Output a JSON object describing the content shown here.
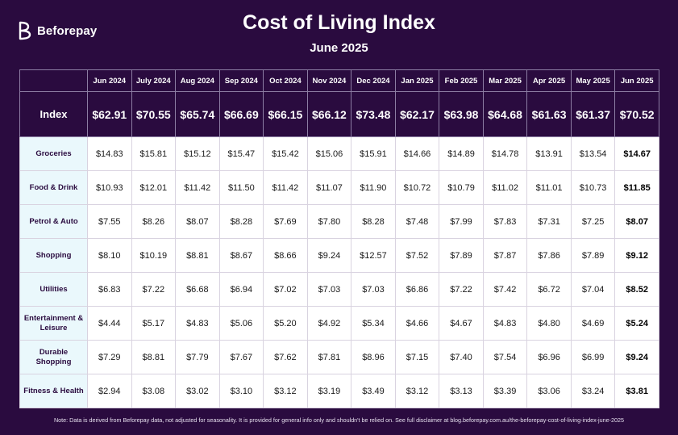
{
  "brand": {
    "name": "Beforepay",
    "logo_icon": "beforepay-b-logo-icon"
  },
  "title": "Cost of Living Index",
  "subtitle": "June 2025",
  "chart_data": {
    "type": "table",
    "columns": [
      "Jun 2024",
      "July 2024",
      "Aug 2024",
      "Sep 2024",
      "Oct 2024",
      "Nov 2024",
      "Dec 2024",
      "Jan 2025",
      "Feb 2025",
      "Mar 2025",
      "Apr 2025",
      "May 2025",
      "Jun 2025"
    ],
    "index_row": {
      "label": "Index",
      "values": [
        "$62.91",
        "$70.55",
        "$65.74",
        "$66.69",
        "$66.15",
        "$66.12",
        "$73.48",
        "$62.17",
        "$63.98",
        "$64.68",
        "$61.63",
        "$61.37",
        "$70.52"
      ]
    },
    "rows": [
      {
        "label": "Groceries",
        "values": [
          "$14.83",
          "$15.81",
          "$15.12",
          "$15.47",
          "$15.42",
          "$15.06",
          "$15.91",
          "$14.66",
          "$14.89",
          "$14.78",
          "$13.91",
          "$13.54",
          "$14.67"
        ]
      },
      {
        "label": "Food & Drink",
        "values": [
          "$10.93",
          "$12.01",
          "$11.42",
          "$11.50",
          "$11.42",
          "$11.07",
          "$11.90",
          "$10.72",
          "$10.79",
          "$11.02",
          "$11.01",
          "$10.73",
          "$11.85"
        ]
      },
      {
        "label": "Petrol & Auto",
        "values": [
          "$7.55",
          "$8.26",
          "$8.07",
          "$8.28",
          "$7.69",
          "$7.80",
          "$8.28",
          "$7.48",
          "$7.99",
          "$7.83",
          "$7.31",
          "$7.25",
          "$8.07"
        ]
      },
      {
        "label": "Shopping",
        "values": [
          "$8.10",
          "$10.19",
          "$8.81",
          "$8.67",
          "$8.66",
          "$9.24",
          "$12.57",
          "$7.52",
          "$7.89",
          "$7.87",
          "$7.86",
          "$7.89",
          "$9.12"
        ]
      },
      {
        "label": "Utilities",
        "values": [
          "$6.83",
          "$7.22",
          "$6.68",
          "$6.94",
          "$7.02",
          "$7.03",
          "$7.03",
          "$6.86",
          "$7.22",
          "$7.42",
          "$6.72",
          "$7.04",
          "$8.52"
        ]
      },
      {
        "label": "Entertainment & Leisure",
        "values": [
          "$4.44",
          "$5.17",
          "$4.83",
          "$5.06",
          "$5.20",
          "$4.92",
          "$5.34",
          "$4.66",
          "$4.67",
          "$4.83",
          "$4.80",
          "$4.69",
          "$5.24"
        ]
      },
      {
        "label": "Durable Shopping",
        "values": [
          "$7.29",
          "$8.81",
          "$7.79",
          "$7.67",
          "$7.62",
          "$7.81",
          "$8.96",
          "$7.15",
          "$7.40",
          "$7.54",
          "$6.96",
          "$6.99",
          "$9.24"
        ]
      },
      {
        "label": "Fitness & Health",
        "values": [
          "$2.94",
          "$3.08",
          "$3.02",
          "$3.10",
          "$3.12",
          "$3.19",
          "$3.49",
          "$3.12",
          "$3.13",
          "$3.39",
          "$3.06",
          "$3.24",
          "$3.81"
        ]
      }
    ]
  },
  "note": "Note: Data is derived from Beforepay data, not adjusted for seasonality. It is provided for general info only and shouldn't be relied on. See full disclaimer at blog.beforepay.com.au/the-beforepay-cost-of-living-index-june-2025",
  "colors": {
    "background": "#2a0b3f",
    "row_label_bg": "#eaf8fc",
    "cell_bg": "#ffffff",
    "grid_line": "#8c7da3"
  }
}
